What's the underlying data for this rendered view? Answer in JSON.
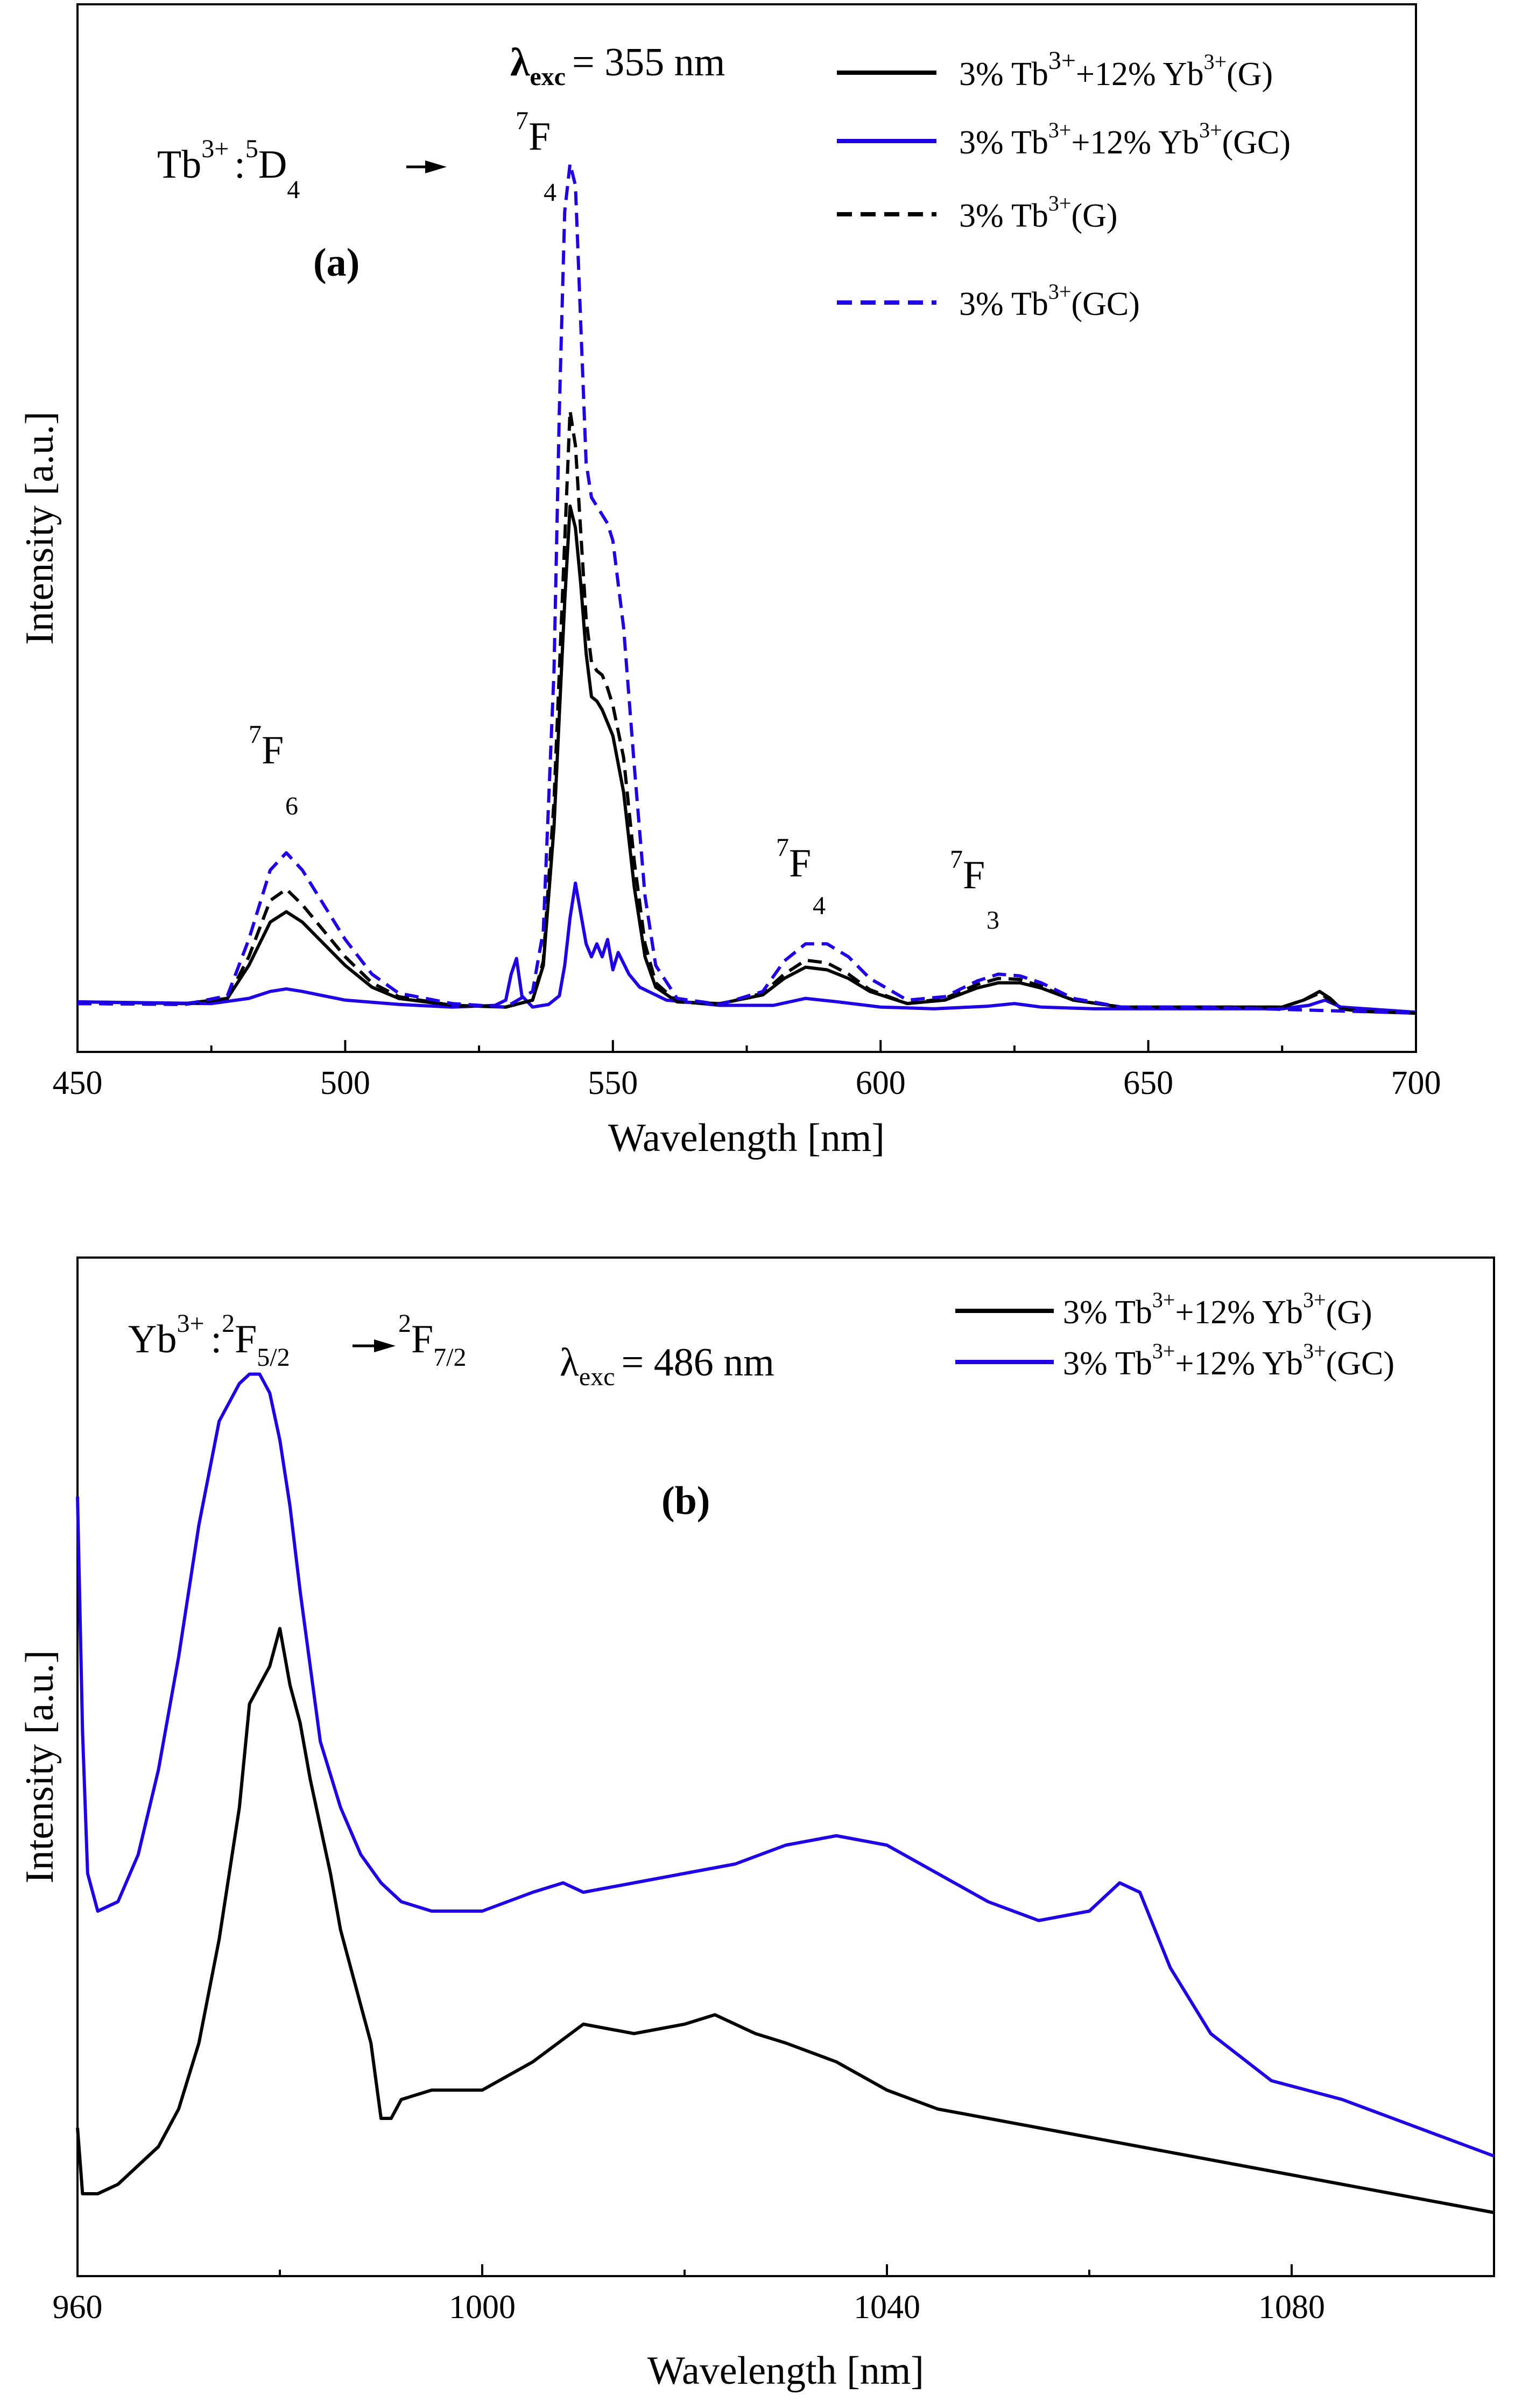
{
  "colors": {
    "black": "#000000",
    "blue": "#1f00e6",
    "background": "#ffffff"
  },
  "chart_data": [
    {
      "id": "a",
      "type": "line",
      "panel_label": "(a)",
      "xlabel": "Wavelength [nm]",
      "ylabel": "Intensity [a.u.]",
      "xlim": [
        450,
        700
      ],
      "ylim": [
        0,
        1.0
      ],
      "xticks": [
        450,
        500,
        550,
        600,
        650,
        700
      ],
      "y_tick_labels_shown": false,
      "excitation": {
        "symbol": "λ",
        "sub": "exc",
        "text": "= 355 nm"
      },
      "transition": {
        "ion": "Tb",
        "ion_sup": "3+",
        "sep": ":",
        "upper_sup": "5",
        "upper": "D",
        "upper_sub": "4",
        "lower_sup": "7",
        "lower": "F",
        "lower_sub": "4"
      },
      "peak_labels": [
        {
          "sup": "7",
          "base": "F",
          "sub": "6",
          "x_nm": 489
        },
        {
          "sup": "7",
          "base": "F",
          "sub": "4",
          "x_nm": 589
        },
        {
          "sup": "7",
          "base": "F",
          "sub": "3",
          "x_nm": 624
        }
      ],
      "legend_position": "top-right",
      "series": [
        {
          "name": "3% Tb3+ +12% Yb3+ (G)",
          "label_base": "3% Tb",
          "label_sup1": "3+",
          "label_mid": "+12% Yb",
          "label_sup2": "3+",
          "label_end": "(G)",
          "color": "#000000",
          "dash": "solid",
          "x": [
            450,
            470,
            478,
            482,
            486,
            489,
            492,
            496,
            500,
            505,
            510,
            520,
            530,
            535,
            537,
            539,
            541,
            542,
            543,
            544,
            545,
            546,
            547,
            548,
            549,
            550,
            552,
            554,
            556,
            558,
            562,
            570,
            578,
            582,
            586,
            590,
            594,
            598,
            605,
            612,
            618,
            622,
            626,
            630,
            636,
            645,
            660,
            675,
            679,
            682,
            684,
            686,
            690,
            700
          ],
          "y": [
            0.018,
            0.016,
            0.022,
            0.06,
            0.11,
            0.122,
            0.11,
            0.085,
            0.06,
            0.035,
            0.022,
            0.014,
            0.012,
            0.02,
            0.06,
            0.22,
            0.48,
            0.59,
            0.565,
            0.5,
            0.42,
            0.37,
            0.365,
            0.355,
            0.34,
            0.325,
            0.26,
            0.15,
            0.07,
            0.035,
            0.018,
            0.016,
            0.026,
            0.045,
            0.058,
            0.055,
            0.045,
            0.03,
            0.016,
            0.02,
            0.034,
            0.04,
            0.04,
            0.034,
            0.02,
            0.012,
            0.012,
            0.012,
            0.02,
            0.03,
            0.022,
            0.01,
            0.007,
            0.005
          ]
        },
        {
          "name": "3% Tb3+ +12% Yb3+ (GC)",
          "label_base": "3% Tb",
          "label_sup1": "3+",
          "label_mid": "+12% Yb",
          "label_sup2": "3+",
          "label_end": "(GC)",
          "color": "#1f00e6",
          "dash": "solid",
          "x": [
            450,
            475,
            482,
            486,
            489,
            492,
            496,
            500,
            510,
            520,
            528,
            530,
            531,
            532,
            533,
            535,
            538,
            540,
            541,
            542,
            543,
            544,
            545,
            546,
            547,
            548,
            549,
            550,
            551,
            553,
            555,
            560,
            570,
            580,
            586,
            592,
            600,
            610,
            620,
            625,
            630,
            640,
            660,
            675,
            680,
            683,
            686,
            700
          ],
          "y": [
            0.018,
            0.016,
            0.022,
            0.03,
            0.033,
            0.03,
            0.025,
            0.02,
            0.015,
            0.012,
            0.014,
            0.02,
            0.05,
            0.068,
            0.025,
            0.012,
            0.015,
            0.025,
            0.06,
            0.115,
            0.155,
            0.12,
            0.085,
            0.07,
            0.085,
            0.07,
            0.09,
            0.055,
            0.075,
            0.05,
            0.035,
            0.02,
            0.014,
            0.014,
            0.022,
            0.018,
            0.012,
            0.01,
            0.013,
            0.016,
            0.012,
            0.01,
            0.01,
            0.01,
            0.014,
            0.02,
            0.012,
            0.006
          ]
        },
        {
          "name": "3% Tb3+ (G)",
          "label_base": "3% Tb",
          "label_sup1": "3+",
          "label_end": "(G)",
          "color": "#000000",
          "dash": "dashed",
          "x": [
            450,
            470,
            478,
            482,
            486,
            489,
            492,
            496,
            500,
            505,
            510,
            520,
            530,
            535,
            537,
            539,
            541,
            542,
            543,
            544,
            545,
            546,
            547,
            548,
            549,
            550,
            552,
            554,
            556,
            558,
            562,
            570,
            578,
            582,
            586,
            590,
            594,
            598,
            605,
            612,
            618,
            622,
            626,
            630,
            636,
            645,
            660,
            675,
            679,
            682,
            684,
            686,
            690,
            700
          ],
          "y": [
            0.016,
            0.015,
            0.022,
            0.07,
            0.135,
            0.148,
            0.13,
            0.1,
            0.07,
            0.04,
            0.024,
            0.014,
            0.012,
            0.02,
            0.065,
            0.25,
            0.55,
            0.7,
            0.66,
            0.56,
            0.46,
            0.41,
            0.4,
            0.395,
            0.38,
            0.36,
            0.3,
            0.18,
            0.085,
            0.04,
            0.018,
            0.015,
            0.028,
            0.05,
            0.066,
            0.063,
            0.05,
            0.032,
            0.016,
            0.022,
            0.038,
            0.045,
            0.044,
            0.036,
            0.02,
            0.012,
            0.012,
            0.012,
            0.02,
            0.028,
            0.02,
            0.01,
            0.007,
            0.005
          ]
        },
        {
          "name": "3% Tb3+ (GC)",
          "label_base": "3% Tb",
          "label_sup1": "3+",
          "label_end": "(GC)",
          "color": "#1f00e6",
          "dash": "dashed",
          "x": [
            450,
            470,
            478,
            482,
            486,
            489,
            492,
            496,
            500,
            505,
            510,
            520,
            530,
            535,
            537,
            539,
            540,
            541,
            542,
            543,
            544,
            545,
            546,
            547,
            548,
            549,
            550,
            552,
            554,
            556,
            558,
            562,
            570,
            578,
            582,
            586,
            590,
            594,
            598,
            605,
            612,
            618,
            622,
            626,
            630,
            636,
            645,
            660,
            700
          ],
          "y": [
            0.016,
            0.015,
            0.025,
            0.09,
            0.17,
            0.19,
            0.17,
            0.13,
            0.09,
            0.05,
            0.028,
            0.016,
            0.012,
            0.03,
            0.1,
            0.4,
            0.7,
            0.93,
            0.985,
            0.96,
            0.8,
            0.64,
            0.6,
            0.59,
            0.58,
            0.57,
            0.55,
            0.45,
            0.29,
            0.14,
            0.06,
            0.022,
            0.015,
            0.03,
            0.065,
            0.085,
            0.085,
            0.07,
            0.045,
            0.02,
            0.024,
            0.042,
            0.05,
            0.048,
            0.04,
            0.022,
            0.012,
            0.012,
            0.005
          ]
        }
      ]
    },
    {
      "id": "b",
      "type": "line",
      "panel_label": "(b)",
      "xlabel": "Wavelength [nm]",
      "ylabel": "Intensity [a.u.]",
      "xlim": [
        960,
        1100
      ],
      "ylim": [
        0,
        1.0
      ],
      "xticks": [
        960,
        1000,
        1040,
        1080
      ],
      "y_tick_labels_shown": false,
      "excitation": {
        "symbol": "λ",
        "sub": "exc",
        "text": "= 486 nm"
      },
      "transition": {
        "ion": "Yb",
        "ion_sup": "3+",
        "sep": ":",
        "upper_sup": "2",
        "upper": "F",
        "upper_sub": "5/2",
        "lower_sup": "2",
        "lower": "F",
        "lower_sub": "7/2"
      },
      "legend_position": "top-right",
      "series": [
        {
          "name": "3% Tb3+ +12% Yb3+ (G)",
          "label_base": "3% Tb",
          "label_sup1": "3+",
          "label_mid": "+12% Yb",
          "label_sup2": "3+",
          "label_end": "(G)",
          "color": "#000000",
          "dash": "solid",
          "x": [
            960,
            960.5,
            962,
            964,
            966,
            968,
            970,
            972,
            974,
            976,
            977,
            978,
            979,
            980,
            981,
            982,
            983,
            984,
            985,
            986,
            987,
            988,
            989,
            990,
            991,
            992,
            995,
            1000,
            1005,
            1010,
            1015,
            1020,
            1023,
            1025,
            1027,
            1030,
            1035,
            1040,
            1045,
            1050,
            1055,
            1060,
            1065,
            1070,
            1075,
            1080,
            1085,
            1090,
            1095,
            1100
          ],
          "y": [
            0.13,
            0.06,
            0.06,
            0.07,
            0.09,
            0.11,
            0.15,
            0.22,
            0.33,
            0.47,
            0.58,
            0.6,
            0.62,
            0.66,
            0.6,
            0.56,
            0.5,
            0.45,
            0.4,
            0.34,
            0.3,
            0.26,
            0.22,
            0.14,
            0.14,
            0.16,
            0.17,
            0.17,
            0.2,
            0.24,
            0.23,
            0.24,
            0.25,
            0.24,
            0.23,
            0.22,
            0.2,
            0.17,
            0.15,
            0.14,
            0.13,
            0.12,
            0.11,
            0.1,
            0.09,
            0.08,
            0.07,
            0.06,
            0.05,
            0.04
          ]
        },
        {
          "name": "3% Tb3+ +12% Yb3+ (GC)",
          "label_base": "3% Tb",
          "label_sup1": "3+",
          "label_mid": "+12% Yb",
          "label_sup2": "3+",
          "label_end": "(GC)",
          "color": "#1f00e6",
          "dash": "solid",
          "x": [
            960,
            960.5,
            961,
            962,
            964,
            966,
            968,
            970,
            972,
            974,
            976,
            977,
            978,
            979,
            980,
            981,
            982,
            984,
            986,
            988,
            990,
            992,
            995,
            1000,
            1005,
            1008,
            1010,
            1015,
            1020,
            1025,
            1030,
            1035,
            1040,
            1045,
            1050,
            1055,
            1060,
            1063,
            1065,
            1068,
            1072,
            1078,
            1085,
            1090,
            1095,
            1100
          ],
          "y": [
            0.8,
            0.55,
            0.4,
            0.36,
            0.37,
            0.42,
            0.51,
            0.63,
            0.77,
            0.88,
            0.92,
            0.93,
            0.93,
            0.91,
            0.86,
            0.79,
            0.7,
            0.54,
            0.47,
            0.42,
            0.39,
            0.37,
            0.36,
            0.36,
            0.38,
            0.39,
            0.38,
            0.39,
            0.4,
            0.41,
            0.43,
            0.44,
            0.43,
            0.4,
            0.37,
            0.35,
            0.36,
            0.39,
            0.38,
            0.3,
            0.23,
            0.18,
            0.16,
            0.14,
            0.12,
            0.1
          ]
        }
      ]
    }
  ]
}
